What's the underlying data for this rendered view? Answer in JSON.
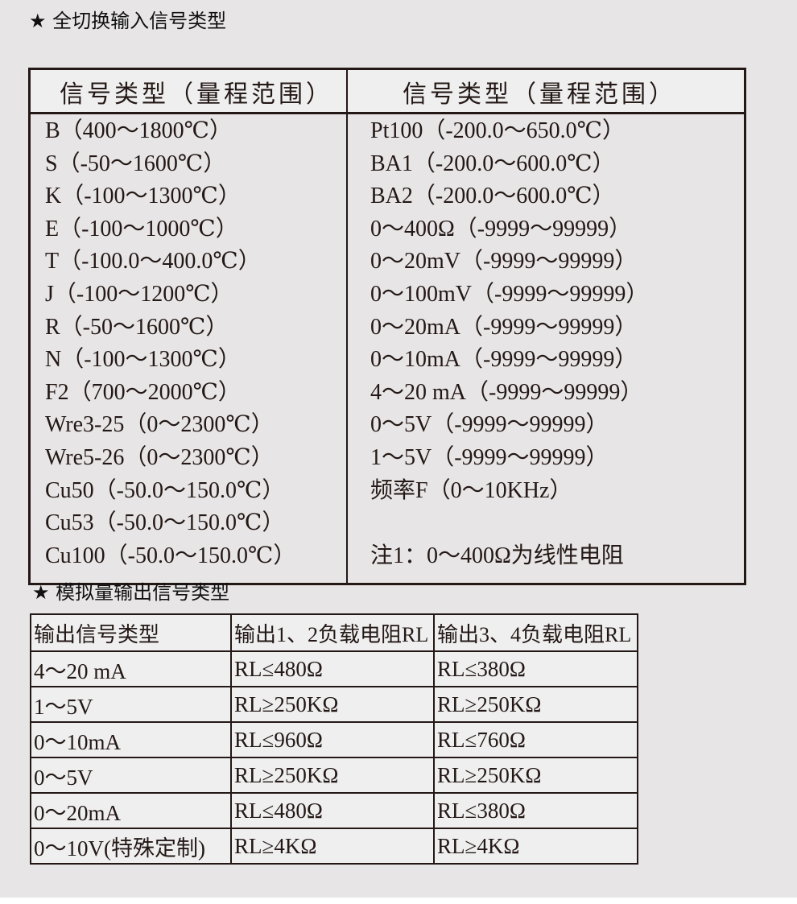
{
  "section1_title": "★ 全切换输入信号类型",
  "section2_title": "★ 模拟量输出信号类型",
  "input_table": {
    "headers": [
      "信号类型（量程范围）",
      "信号类型（量程范围）"
    ],
    "left": [
      "B（400～1800℃）",
      "S（-50～1600℃）",
      "K（-100～1300℃）",
      "E（-100～1000℃）",
      "T（-100.0～400.0℃）",
      "J（-100～1200℃）",
      "R（-50～1600℃）",
      "N（-100～1300℃）",
      "F2（700～2000℃）",
      "Wre3-25（0～2300℃）",
      "Wre5-26（0～2300℃）",
      "Cu50（-50.0～150.0℃）",
      "Cu53（-50.0～150.0℃）",
      "Cu100（-50.0～150.0℃）"
    ],
    "right": [
      "Pt100（-200.0～650.0℃）",
      "BA1（-200.0～600.0℃）",
      "BA2（-200.0～600.0℃）",
      "0～400Ω（-9999～99999）",
      "0～20mV（-9999～99999）",
      "0～100mV（-9999～99999）",
      "0～20mA（-9999～99999）",
      "0～10mA（-9999～99999）",
      "4～20 mA（-9999～99999）",
      "0～5V（-9999～99999）",
      "1～5V（-9999～99999）",
      "频率F（0～10KHz）",
      "",
      "注1：0～400Ω为线性电阻"
    ]
  },
  "output_table": {
    "headers": [
      "输出信号类型",
      "输出1、2负载电阻RL",
      "输出3、4负载电阻RL"
    ],
    "rows": [
      [
        "4～20 mA",
        "RL≤480Ω",
        "RL≤380Ω"
      ],
      [
        "1～5V",
        "RL≥250KΩ",
        "RL≥250KΩ"
      ],
      [
        "0～10mA",
        "RL≤960Ω",
        "RL≤760Ω"
      ],
      [
        "0～5V",
        "RL≥250KΩ",
        "RL≥250KΩ"
      ],
      [
        "0～20mA",
        "RL≤480Ω",
        "RL≤380Ω"
      ],
      [
        "0～10V(特殊定制)",
        "RL≥4KΩ",
        "RL≥4KΩ"
      ]
    ]
  }
}
